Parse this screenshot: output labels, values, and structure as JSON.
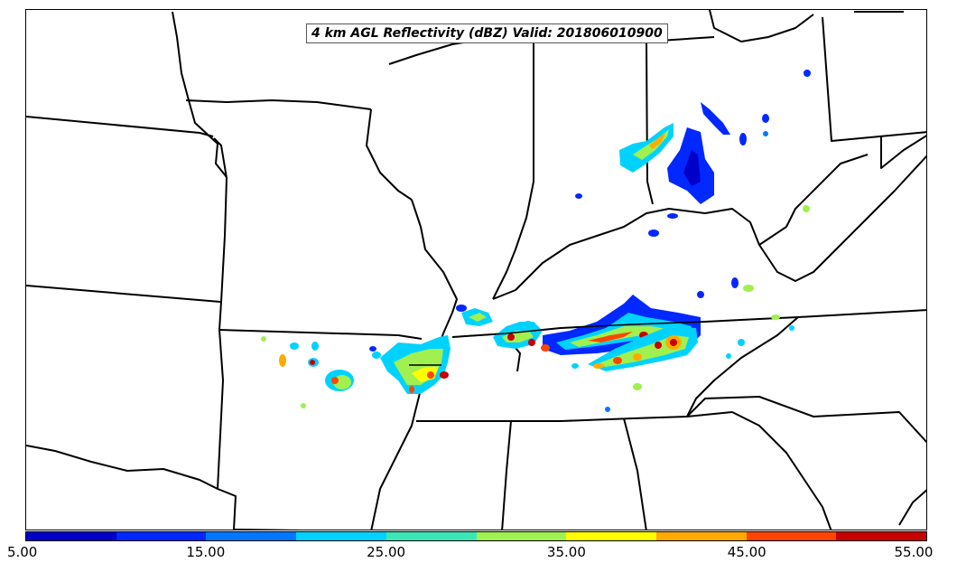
{
  "title": "4 km AGL Reflectivity (dBZ) Valid: 201806010900",
  "colorbar": {
    "colors": [
      "#0000c8",
      "#0028ff",
      "#0078ff",
      "#00d2ff",
      "#3ce6b4",
      "#a0f050",
      "#ffff00",
      "#ffaa00",
      "#ff4600",
      "#c80000"
    ],
    "tick_labels": [
      "5.00",
      "15.00",
      "25.00",
      "35.00",
      "45.00",
      "55.00"
    ]
  },
  "legend_min_dbz": 5,
  "legend_max_dbz": 55
}
